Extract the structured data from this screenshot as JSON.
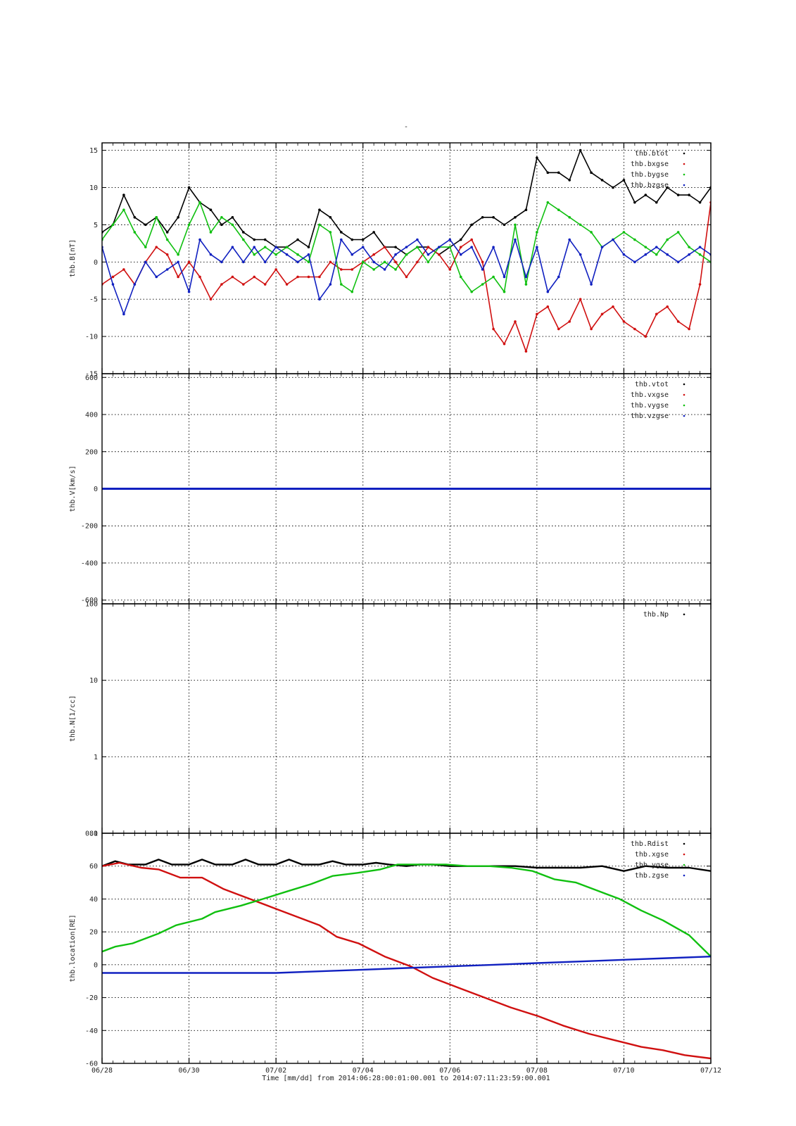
{
  "title": "-",
  "footer": "Time [mm/dd]  from 2014:06:28:00:01:00.001  to  2014:07:11:23:59:00.001",
  "x_ticks": [
    "06/28",
    "06/30",
    "07/02",
    "07/04",
    "07/06",
    "07/08",
    "07/10",
    "07/12"
  ],
  "chart_data": [
    {
      "type": "scatter",
      "ylabel": "thb.B[nT]",
      "xrange": [
        0,
        14
      ],
      "ylim": [
        -15,
        16
      ],
      "yticks": [
        "15",
        "10",
        "5",
        "0",
        "-5",
        "-10",
        "-15"
      ],
      "ytick_values": [
        15,
        10,
        5,
        0,
        -5,
        -10,
        -15
      ],
      "grid": true,
      "legend_position": "top-right",
      "series": [
        {
          "name": "thb.btot",
          "color": "#000000",
          "x": [
            0,
            0.25,
            0.5,
            0.75,
            1,
            1.25,
            1.5,
            1.75,
            2,
            2.25,
            2.5,
            2.75,
            3,
            3.25,
            3.5,
            3.75,
            4,
            4.25,
            4.5,
            4.75,
            5,
            5.25,
            5.5,
            5.75,
            6,
            6.25,
            6.5,
            6.75,
            7,
            7.25,
            7.5,
            7.75,
            8,
            8.25,
            8.5,
            8.75,
            9,
            9.25,
            9.5,
            9.75,
            10,
            10.25,
            10.5,
            10.75,
            11,
            11.25,
            11.5,
            11.75,
            12,
            12.25,
            12.5,
            12.75,
            13,
            13.25,
            13.5,
            13.75,
            14
          ],
          "values": [
            4,
            5,
            9,
            6,
            5,
            6,
            4,
            6,
            10,
            8,
            7,
            5,
            6,
            4,
            3,
            3,
            2,
            2,
            3,
            2,
            7,
            6,
            4,
            3,
            3,
            4,
            2,
            2,
            1,
            2,
            2,
            1,
            2,
            3,
            5,
            6,
            6,
            5,
            6,
            7,
            14,
            12,
            12,
            11,
            15,
            12,
            11,
            10,
            11,
            8,
            9,
            8,
            10,
            9,
            9,
            8,
            10
          ]
        },
        {
          "name": "thb.bxgse",
          "color": "#d01010",
          "x": [
            0,
            0.25,
            0.5,
            0.75,
            1,
            1.25,
            1.5,
            1.75,
            2,
            2.25,
            2.5,
            2.75,
            3,
            3.25,
            3.5,
            3.75,
            4,
            4.25,
            4.5,
            4.75,
            5,
            5.25,
            5.5,
            5.75,
            6,
            6.25,
            6.5,
            6.75,
            7,
            7.25,
            7.5,
            7.75,
            8,
            8.25,
            8.5,
            8.75,
            9,
            9.25,
            9.5,
            9.75,
            10,
            10.25,
            10.5,
            10.75,
            11,
            11.25,
            11.5,
            11.75,
            12,
            12.25,
            12.5,
            12.75,
            13,
            13.25,
            13.5,
            13.75,
            14
          ],
          "values": [
            -3,
            -2,
            -1,
            -3,
            0,
            2,
            1,
            -2,
            0,
            -2,
            -5,
            -3,
            -2,
            -3,
            -2,
            -3,
            -1,
            -3,
            -2,
            -2,
            -2,
            0,
            -1,
            -1,
            0,
            1,
            2,
            0,
            -2,
            0,
            2,
            1,
            -1,
            2,
            3,
            0,
            -9,
            -11,
            -8,
            -12,
            -7,
            -6,
            -9,
            -8,
            -5,
            -9,
            -7,
            -6,
            -8,
            -9,
            -10,
            -7,
            -6,
            -8,
            -9,
            -3,
            8
          ]
        },
        {
          "name": "thb.bygse",
          "color": "#10c010",
          "x": [
            0,
            0.25,
            0.5,
            0.75,
            1,
            1.25,
            1.5,
            1.75,
            2,
            2.25,
            2.5,
            2.75,
            3,
            3.25,
            3.5,
            3.75,
            4,
            4.25,
            4.5,
            4.75,
            5,
            5.25,
            5.5,
            5.75,
            6,
            6.25,
            6.5,
            6.75,
            7,
            7.25,
            7.5,
            7.75,
            8,
            8.25,
            8.5,
            8.75,
            9,
            9.25,
            9.5,
            9.75,
            10,
            10.25,
            10.5,
            10.75,
            11,
            11.25,
            11.5,
            11.75,
            12,
            12.25,
            12.5,
            12.75,
            13,
            13.25,
            13.5,
            13.75,
            14
          ],
          "values": [
            3,
            5,
            7,
            4,
            2,
            6,
            3,
            1,
            5,
            8,
            4,
            6,
            5,
            3,
            1,
            2,
            1,
            2,
            1,
            0,
            5,
            4,
            -3,
            -4,
            0,
            -1,
            0,
            -1,
            1,
            2,
            0,
            2,
            2,
            -2,
            -4,
            -3,
            -2,
            -4,
            5,
            -3,
            4,
            8,
            7,
            6,
            5,
            4,
            2,
            3,
            4,
            3,
            2,
            1,
            3,
            4,
            2,
            1,
            0
          ]
        },
        {
          "name": "thb.bzgse",
          "color": "#1020c0",
          "x": [
            0,
            0.25,
            0.5,
            0.75,
            1,
            1.25,
            1.5,
            1.75,
            2,
            2.25,
            2.5,
            2.75,
            3,
            3.25,
            3.5,
            3.75,
            4,
            4.25,
            4.5,
            4.75,
            5,
            5.25,
            5.5,
            5.75,
            6,
            6.25,
            6.5,
            6.75,
            7,
            7.25,
            7.5,
            7.75,
            8,
            8.25,
            8.5,
            8.75,
            9,
            9.25,
            9.5,
            9.75,
            10,
            10.25,
            10.5,
            10.75,
            11,
            11.25,
            11.5,
            11.75,
            12,
            12.25,
            12.5,
            12.75,
            13,
            13.25,
            13.5,
            13.75,
            14
          ],
          "values": [
            2,
            -3,
            -7,
            -3,
            0,
            -2,
            -1,
            0,
            -4,
            3,
            1,
            0,
            2,
            0,
            2,
            0,
            2,
            1,
            0,
            1,
            -5,
            -3,
            3,
            1,
            2,
            0,
            -1,
            1,
            2,
            3,
            1,
            2,
            3,
            1,
            2,
            -1,
            2,
            -2,
            3,
            -2,
            2,
            -4,
            -2,
            3,
            1,
            -3,
            2,
            3,
            1,
            0,
            1,
            2,
            1,
            0,
            1,
            2,
            1
          ]
        }
      ]
    },
    {
      "type": "scatter",
      "ylabel": "thb.V[km/s]",
      "xrange": [
        0,
        14
      ],
      "ylim": [
        -620,
        620
      ],
      "yticks": [
        "600",
        "400",
        "200",
        "0",
        "-200",
        "-400",
        "-600"
      ],
      "ytick_values": [
        600,
        400,
        200,
        0,
        -200,
        -400,
        -600
      ],
      "grid": true,
      "legend_position": "top-right",
      "series": [
        {
          "name": "thb.vtot",
          "color": "#000000",
          "x": [
            0,
            14
          ],
          "values": [
            0,
            0
          ]
        },
        {
          "name": "thb.vxgse",
          "color": "#d01010",
          "x": [
            0,
            14
          ],
          "values": [
            0,
            0
          ]
        },
        {
          "name": "thb.vygse",
          "color": "#10c010",
          "x": [
            0,
            14
          ],
          "values": [
            0,
            0
          ]
        },
        {
          "name": "thb.vzgse",
          "color": "#1020c0",
          "x": [
            0,
            14
          ],
          "values": [
            0,
            0
          ]
        }
      ]
    },
    {
      "type": "scatter",
      "ylabel": "thb.N[1/cc]",
      "xrange": [
        0,
        14
      ],
      "ylim": [
        0.1,
        100
      ],
      "log_scale": true,
      "yticks": [
        "100",
        "10",
        "1",
        "0.1"
      ],
      "ytick_values": [
        100,
        10,
        1,
        0.1
      ],
      "grid": true,
      "legend_position": "top-right",
      "series": [
        {
          "name": "thb.Np",
          "color": "#000000",
          "x": [],
          "values": []
        }
      ]
    },
    {
      "type": "line",
      "ylabel": "thb.location[RE]",
      "xrange": [
        0,
        14
      ],
      "ylim": [
        -60,
        80
      ],
      "yticks": [
        "80",
        "60",
        "40",
        "20",
        "0",
        "-20",
        "-40",
        "-60"
      ],
      "ytick_values": [
        80,
        60,
        40,
        20,
        0,
        -20,
        -40,
        -60
      ],
      "grid": true,
      "legend_position": "top-right",
      "series": [
        {
          "name": "thb.Rdist",
          "color": "#000000",
          "x": [
            0,
            0.3,
            0.6,
            1,
            1.3,
            1.6,
            2,
            2.3,
            2.6,
            3,
            3.3,
            3.6,
            4,
            4.3,
            4.6,
            5,
            5.3,
            5.6,
            6,
            6.3,
            6.6,
            7,
            7.3,
            7.6,
            8,
            8.5,
            9,
            9.5,
            10,
            10.5,
            11,
            11.5,
            12,
            12.5,
            13,
            13.5,
            14
          ],
          "values": [
            60,
            63,
            61,
            61,
            64,
            61,
            61,
            64,
            61,
            61,
            64,
            61,
            61,
            64,
            61,
            61,
            63,
            61,
            61,
            62,
            61,
            60,
            61,
            61,
            60,
            60,
            60,
            60,
            59,
            59,
            59,
            60,
            57,
            60,
            59,
            59,
            57
          ]
        },
        {
          "name": "thb.xgse",
          "color": "#d01010",
          "x": [
            0,
            0.4,
            0.9,
            1.3,
            1.8,
            2.3,
            2.8,
            3.4,
            3.9,
            4.5,
            5,
            5.4,
            5.9,
            6.5,
            7.1,
            7.6,
            8.2,
            8.8,
            9.4,
            10,
            10.6,
            11.2,
            11.8,
            12.4,
            12.9,
            13.4,
            14
          ],
          "values": [
            60,
            62,
            59,
            58,
            53,
            53,
            46,
            40,
            35,
            29,
            24,
            17,
            13,
            5,
            -1,
            -8,
            -14,
            -20,
            -26,
            -31,
            -37,
            -42,
            -46,
            -50,
            -52,
            -55,
            -57
          ]
        },
        {
          "name": "thb.ygse",
          "color": "#10c010",
          "x": [
            0,
            0.3,
            0.7,
            1.3,
            1.7,
            2.3,
            2.6,
            3.2,
            3.7,
            4.3,
            4.8,
            5.3,
            5.9,
            6.4,
            6.8,
            7.3,
            7.9,
            8.4,
            8.9,
            9.4,
            9.9,
            10.4,
            10.9,
            11.4,
            11.9,
            12.4,
            12.9,
            13.5,
            14
          ],
          "values": [
            8,
            11,
            13,
            19,
            24,
            28,
            32,
            36,
            40,
            45,
            49,
            54,
            56,
            58,
            61,
            61,
            61,
            60,
            60,
            59,
            57,
            52,
            50,
            45,
            40,
            33,
            27,
            18,
            5
          ]
        },
        {
          "name": "thb.zgse",
          "color": "#1020c0",
          "x": [
            0,
            1,
            2,
            3,
            4,
            5,
            6,
            7,
            8,
            9,
            10,
            11,
            12,
            13,
            14
          ],
          "values": [
            -5,
            -5,
            -5,
            -5,
            -5,
            -4,
            -3,
            -2,
            -1,
            0,
            1,
            2,
            3,
            4,
            5
          ]
        }
      ]
    }
  ]
}
